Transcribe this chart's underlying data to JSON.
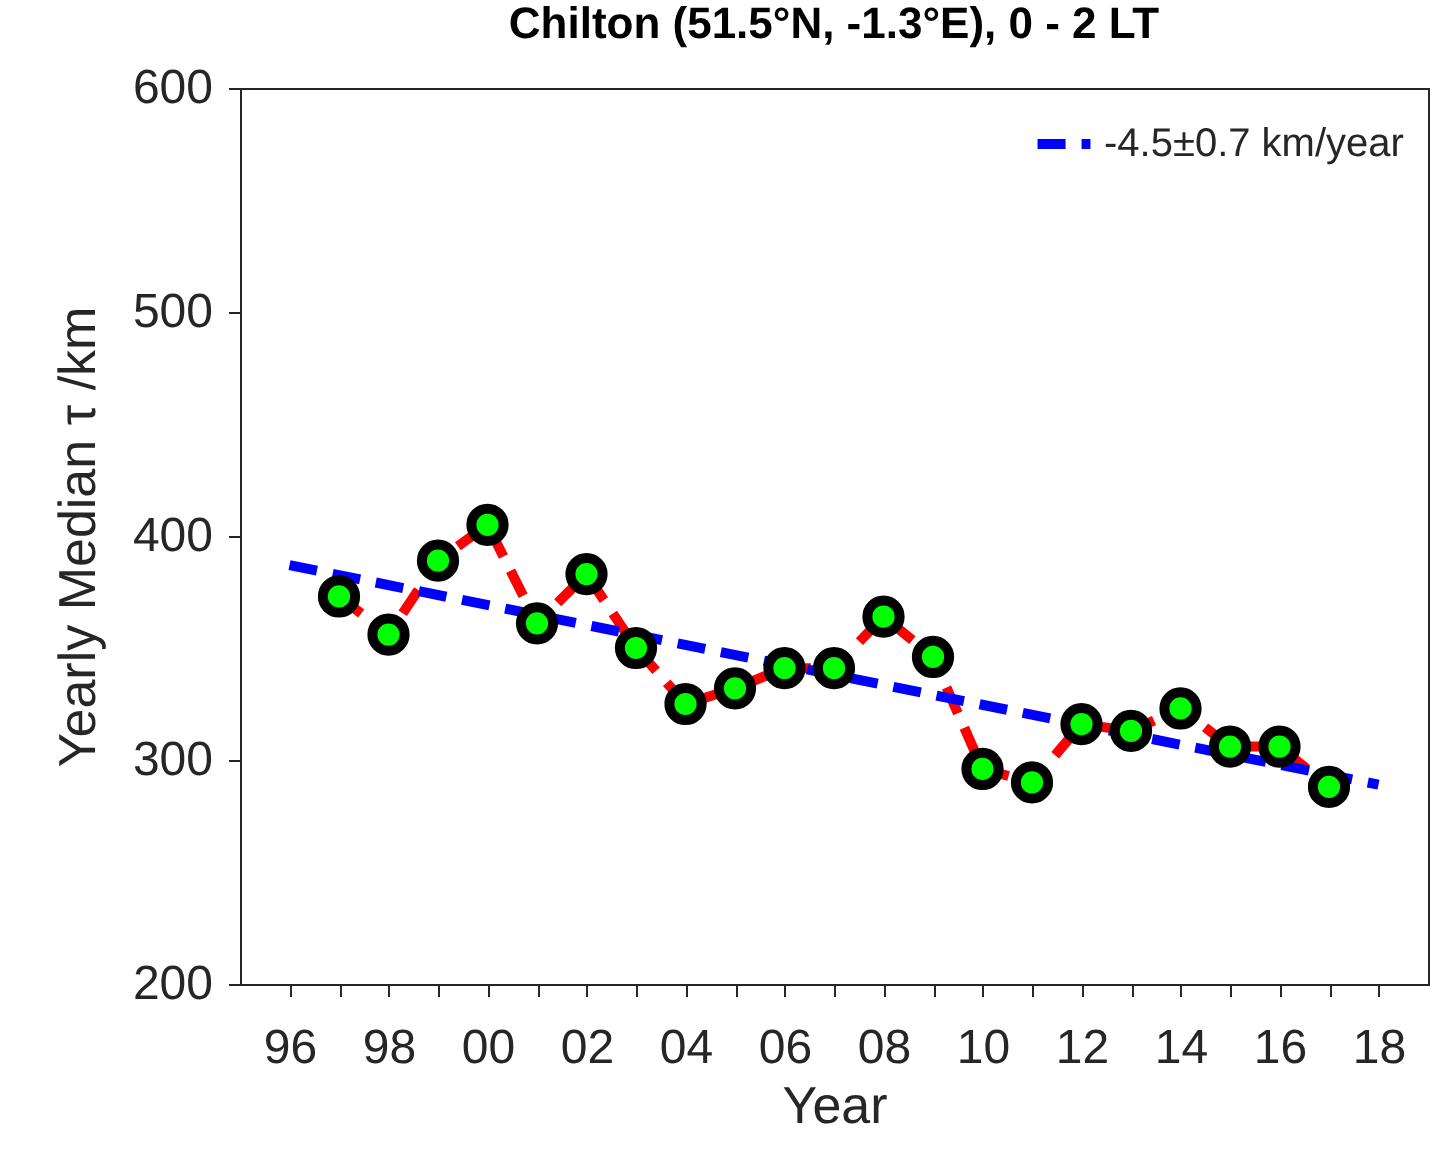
{
  "chart_data": {
    "type": "line",
    "title": "Chilton (51.5°N, -1.3°E), 0 - 2 LT",
    "xlabel": "Year",
    "ylabel": "Yearly Median τ /km",
    "x": [
      1997,
      1998,
      1999,
      2000,
      2001,
      2002,
      2003,
      2004,
      2005,
      2006,
      2007,
      2008,
      2009,
      2010,
      2011,
      2012,
      2013,
      2014,
      2015,
      2016,
      2017
    ],
    "series": [
      {
        "color": "#ff0000",
        "line_style": "dashed",
        "marker": "circle",
        "colors": [
          "#00ff00",
          "#00ff00",
          "#00ff00",
          "#00ff00",
          "#00ff00",
          "#00ff00",
          "#00ff00",
          "#00ff00",
          "#00ff00",
          "#00ff00",
          "#00ff00",
          "#00ff00",
          "#00ff00",
          "#00ff00",
          "#00ff00",
          "#00ff00",
          "#00ff00",
          "#00ff00",
          "#00ff00",
          "#00ff00",
          "#00ff00"
        ],
        "values": [
          373,
          356,
          389,
          405,
          361,
          383,
          350,
          325,
          332,
          341,
          341,
          364,
          346,
          296,
          290,
          316,
          313,
          323,
          306,
          306,
          288
        ]
      },
      {
        "type": "line",
        "name": "-4.5±0.7 km/year",
        "color": "#0000ff",
        "line_style": "dashed",
        "marker": "none",
        "x": [
          1996,
          2018
        ],
        "values": [
          387,
          289
        ]
      }
    ],
    "xlim": [
      1995,
      2019
    ],
    "xticks": [
      {
        "value": 1996,
        "label": "96"
      },
      {
        "value": 1997,
        "label": null
      },
      {
        "value": 1998,
        "label": "98"
      },
      {
        "value": 1999,
        "label": null
      },
      {
        "value": 2000,
        "label": "00"
      },
      {
        "value": 2001,
        "label": null
      },
      {
        "value": 2002,
        "label": "02"
      },
      {
        "value": 2003,
        "label": null
      },
      {
        "value": 2004,
        "label": "04"
      },
      {
        "value": 2005,
        "label": null
      },
      {
        "value": 2006,
        "label": "06"
      },
      {
        "value": 2007,
        "label": null
      },
      {
        "value": 2008,
        "label": "08"
      },
      {
        "value": 2009,
        "label": null
      },
      {
        "value": 2010,
        "label": "10"
      },
      {
        "value": 2011,
        "label": null
      },
      {
        "value": 2012,
        "label": "12"
      },
      {
        "value": 2013,
        "label": null
      },
      {
        "value": 2014,
        "label": "14"
      },
      {
        "value": 2015,
        "label": null
      },
      {
        "value": 2016,
        "label": "16"
      },
      {
        "value": 2017,
        "label": null
      },
      {
        "value": 2018,
        "label": "18"
      }
    ],
    "ylim": [
      200,
      600
    ],
    "yticks": [
      200,
      300,
      400,
      500,
      600
    ],
    "grid": false,
    "legend": "top right"
  }
}
